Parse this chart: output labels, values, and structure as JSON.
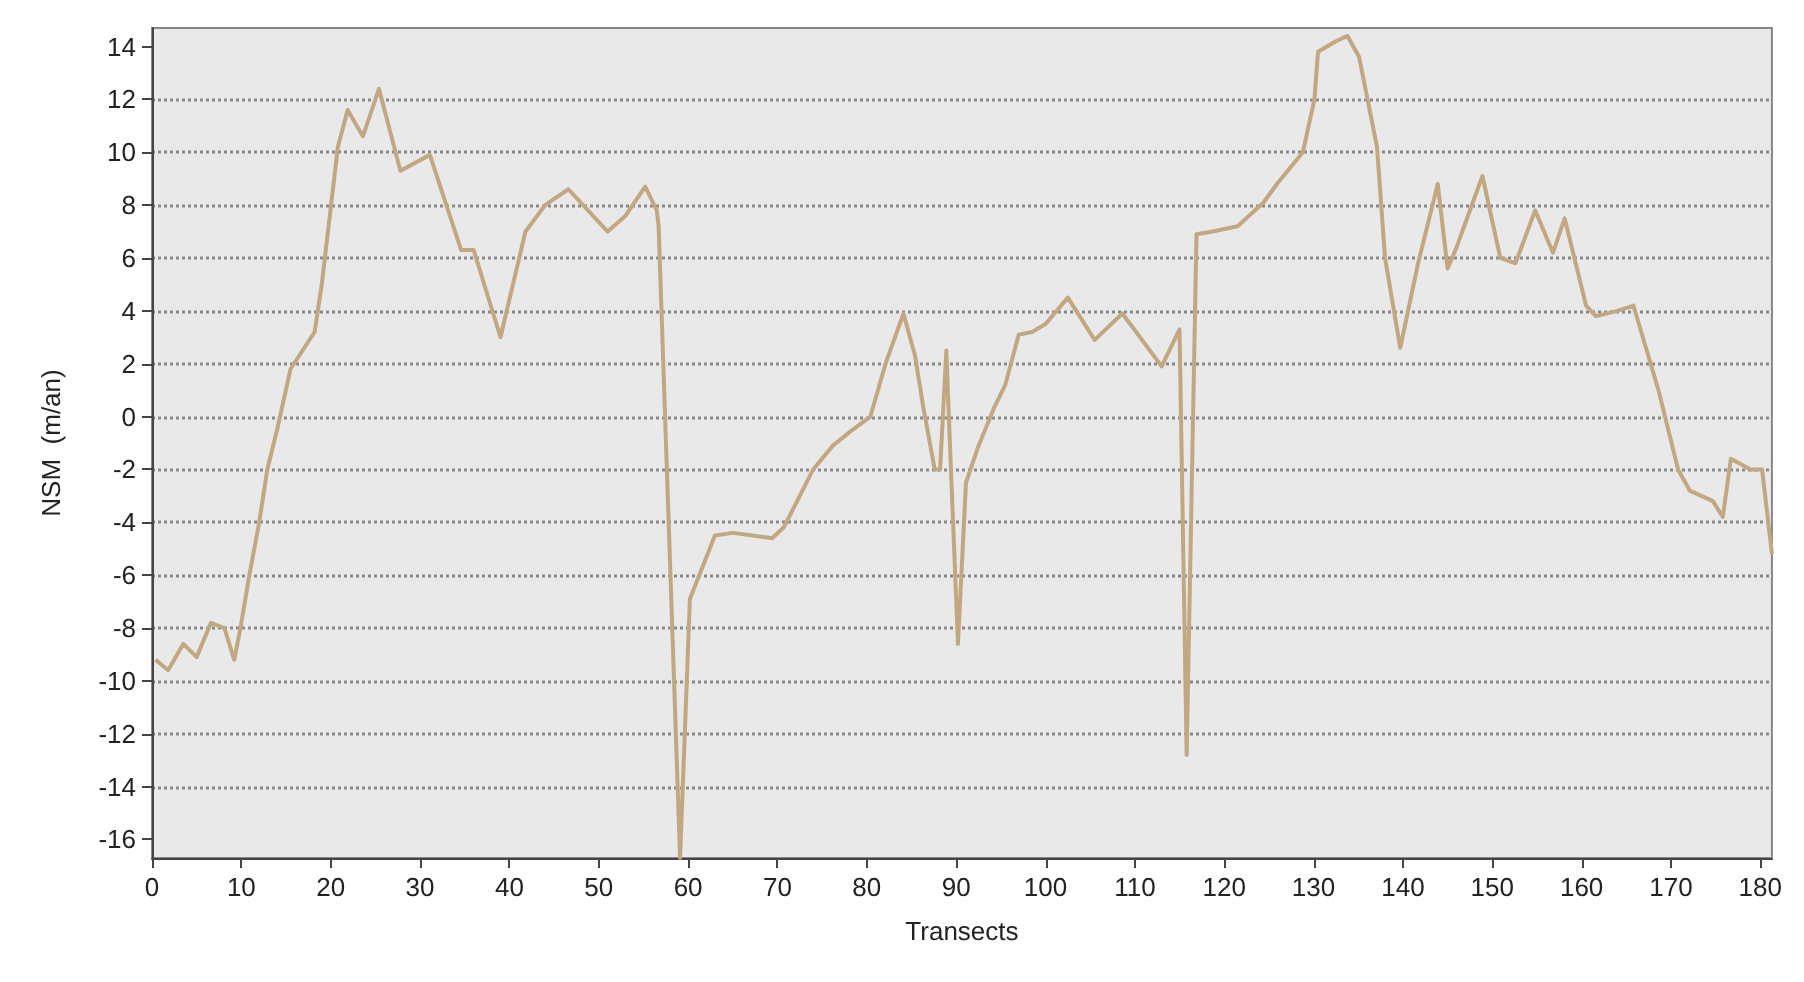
{
  "chart_data": {
    "type": "line",
    "xlabel": "Transects",
    "ylabel": "NSM  (m/an)",
    "xlim": [
      0,
      181.3
    ],
    "xticks": [
      0,
      10,
      20,
      30,
      40,
      50,
      60,
      70,
      80,
      90,
      100,
      110,
      120,
      130,
      140,
      150,
      160,
      170,
      180
    ],
    "ylim": [
      -16.7,
      14.7
    ],
    "yticks": [
      -16,
      -14,
      -12,
      -10,
      -8,
      -6,
      -4,
      -2,
      0,
      2,
      4,
      6,
      8,
      10,
      12,
      14
    ],
    "grid": "y",
    "series": [
      {
        "color": "#c2a882",
        "x": [
          0.4,
          1.8,
          3.5,
          5,
          6.6,
          8.1,
          9.2,
          9.9,
          10.9,
          12,
          12.9,
          14,
          15.5,
          18.2,
          19,
          19.9,
          20.8,
          21.9,
          23.6,
          25.4,
          27.8,
          31.1,
          34.6,
          36,
          39,
          41.8,
          44,
          46.6,
          51,
          53,
          55.2,
          56.5,
          56.7,
          59.1,
          60.2,
          63,
          65,
          69.4,
          70.7,
          74,
          76.2,
          78.4,
          80.4,
          82.1,
          84.1,
          85.4,
          86.3,
          87.6,
          88.2,
          88.9,
          89.3,
          90.2,
          91.1,
          92.4,
          94.2,
          95.5,
          97,
          98.5,
          100,
          102.5,
          105.5,
          108.6,
          113,
          115,
          115.8,
          116.9,
          118.7,
          121.5,
          124.4,
          125.9,
          128.8,
          130.1,
          130.5,
          132.5,
          133.8,
          135.1,
          137.1,
          138,
          139.7,
          141.7,
          143.9,
          145,
          146,
          148.9,
          150.9,
          152.6,
          154.8,
          156.8,
          158.1,
          160.5,
          161.6,
          164,
          165.8,
          168.6,
          170.8,
          172.1,
          174.7,
          175.8,
          176.7,
          178.9,
          180.2,
          181.3
        ],
        "values": [
          -9.2,
          -9.6,
          -8.6,
          -9.1,
          -7.8,
          -8,
          -9.2,
          -8,
          -6,
          -4,
          -2,
          -0.5,
          1.8,
          3.2,
          5,
          7.6,
          10.2,
          11.6,
          10.6,
          12.4,
          9.3,
          9.9,
          6.3,
          6.3,
          3,
          7,
          8,
          8.6,
          7,
          7.6,
          8.7,
          7.8,
          7.2,
          -16.7,
          -6.9,
          -4.5,
          -4.4,
          -4.6,
          -4.2,
          -2,
          -1.1,
          -0.5,
          0,
          2,
          3.9,
          2.3,
          0.4,
          -2,
          -2,
          2.5,
          -1,
          -8.6,
          -2.5,
          -1.2,
          0.3,
          1.2,
          3.1,
          3.2,
          3.5,
          4.5,
          2.9,
          3.9,
          1.9,
          3.3,
          -12.8,
          6.9,
          7,
          7.2,
          8.1,
          8.8,
          10,
          12,
          13.8,
          14.2,
          14.4,
          13.6,
          10.2,
          6,
          2.6,
          5.8,
          8.8,
          5.6,
          6.4,
          9.1,
          6,
          5.8,
          7.8,
          6.2,
          7.5,
          4.2,
          3.8,
          4,
          4.2,
          1,
          -2,
          -2.8,
          -3.2,
          -3.8,
          -1.6,
          -2,
          -2,
          -5.2
        ]
      }
    ]
  }
}
